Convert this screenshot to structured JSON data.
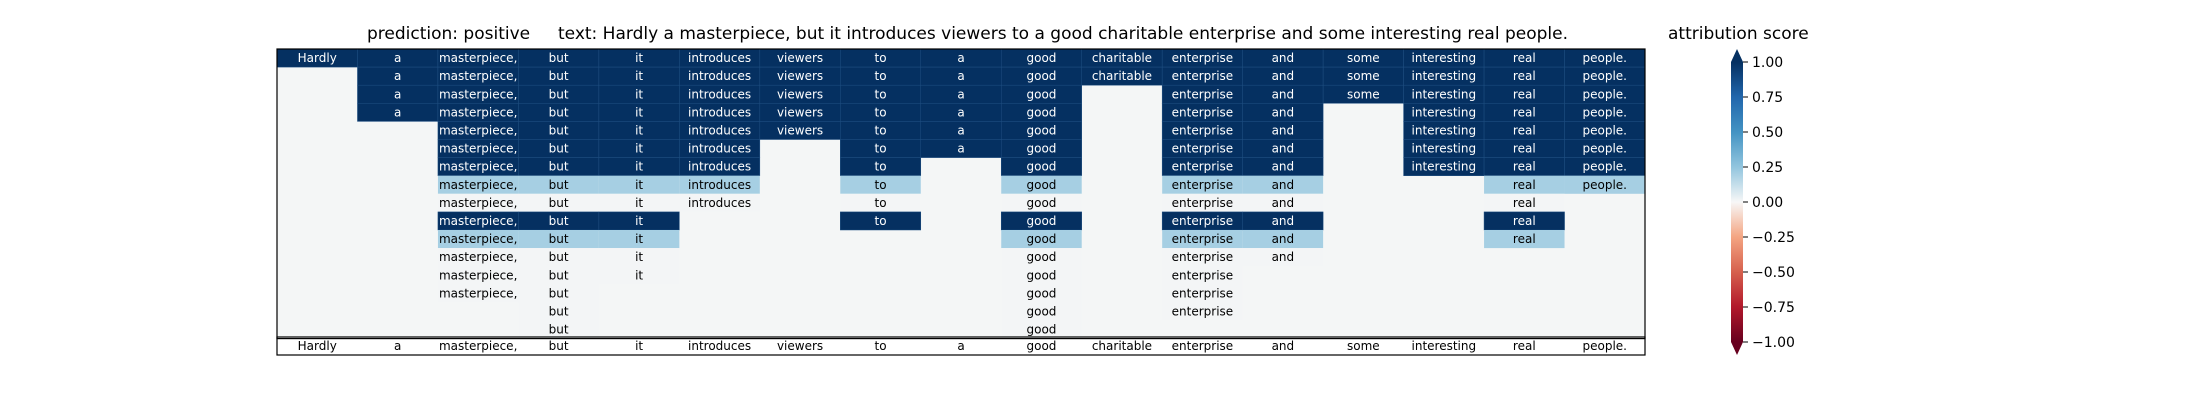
{
  "chart_data": {
    "type": "heatmap",
    "title_prediction": "prediction:  positive",
    "title_text": "text:  Hardly a masterpiece, but it introduces viewers to a good charitable enterprise and some interesting real people.",
    "colorbar_label": "attribution score",
    "colorbar_ticks": [
      "1.00",
      "0.75",
      "0.50",
      "0.25",
      "0.00",
      "−0.25",
      "−0.50",
      "−0.75",
      "−1.00"
    ],
    "colorbar_range": [
      -1.0,
      1.0
    ],
    "colorscale": "RdBu",
    "tokens": [
      "Hardly",
      "a",
      "masterpiece,",
      "but",
      "it",
      "introduces",
      "viewers",
      "to",
      "a",
      "good",
      "charitable",
      "enterprise",
      "and",
      "some",
      "interesting",
      "real",
      "people."
    ],
    "rows": [
      [
        1,
        1,
        1,
        1,
        1,
        1,
        1,
        1,
        1,
        1,
        1,
        1,
        1,
        1,
        1,
        1,
        1
      ],
      [
        0,
        1,
        1,
        1,
        1,
        1,
        1,
        1,
        1,
        1,
        1,
        1,
        1,
        1,
        1,
        1,
        1
      ],
      [
        0,
        1,
        1,
        1,
        1,
        1,
        1,
        1,
        1,
        1,
        0,
        1,
        1,
        1,
        1,
        1,
        1
      ],
      [
        0,
        1,
        1,
        1,
        1,
        1,
        1,
        1,
        1,
        1,
        0,
        1,
        1,
        0,
        1,
        1,
        1
      ],
      [
        0,
        0,
        1,
        1,
        1,
        1,
        1,
        1,
        1,
        1,
        0,
        1,
        1,
        0,
        1,
        1,
        1
      ],
      [
        0,
        0,
        1,
        1,
        1,
        1,
        0,
        1,
        1,
        1,
        0,
        1,
        1,
        0,
        1,
        1,
        1
      ],
      [
        0,
        0,
        1,
        1,
        1,
        1,
        0,
        1,
        0,
        1,
        0,
        1,
        1,
        0,
        1,
        1,
        1
      ],
      [
        0,
        0,
        0.2,
        0.2,
        0.2,
        0.2,
        0,
        0.2,
        0,
        0.2,
        0,
        0.2,
        0.2,
        0,
        0,
        0.2,
        0.2
      ],
      [
        0,
        0,
        0.01,
        0.01,
        0.01,
        0.01,
        0,
        0.01,
        0,
        0.01,
        0,
        0.01,
        0.01,
        0,
        0,
        0.01,
        0
      ],
      [
        0,
        0,
        1,
        1,
        1,
        0,
        0,
        1,
        0,
        1,
        0,
        1,
        1,
        0,
        0,
        1,
        0
      ],
      [
        0,
        0,
        0.2,
        0.2,
        0.2,
        0,
        0,
        0,
        0,
        0.2,
        0,
        0.2,
        0.2,
        0,
        0,
        0.2,
        0
      ],
      [
        0,
        0,
        0.01,
        0.01,
        0.01,
        0,
        0,
        0,
        0,
        0.01,
        0,
        0.01,
        0.01,
        0,
        0,
        0,
        0
      ],
      [
        0,
        0,
        0.01,
        0.01,
        0.01,
        0,
        0,
        0,
        0,
        0.01,
        0,
        0.01,
        0,
        0,
        0,
        0,
        0
      ],
      [
        0,
        0,
        0.01,
        0.01,
        0,
        0,
        0,
        0,
        0,
        0.01,
        0,
        0.01,
        0,
        0,
        0,
        0,
        0
      ],
      [
        0,
        0,
        0,
        0.01,
        0,
        0,
        0,
        0,
        0,
        0.01,
        0,
        0.01,
        0,
        0,
        0,
        0,
        0
      ],
      [
        0,
        0,
        0,
        0.01,
        0,
        0,
        0,
        0,
        0,
        0.01,
        0,
        0,
        0,
        0,
        0,
        0,
        0
      ]
    ],
    "grid": false,
    "legend": "colorbar-right"
  }
}
